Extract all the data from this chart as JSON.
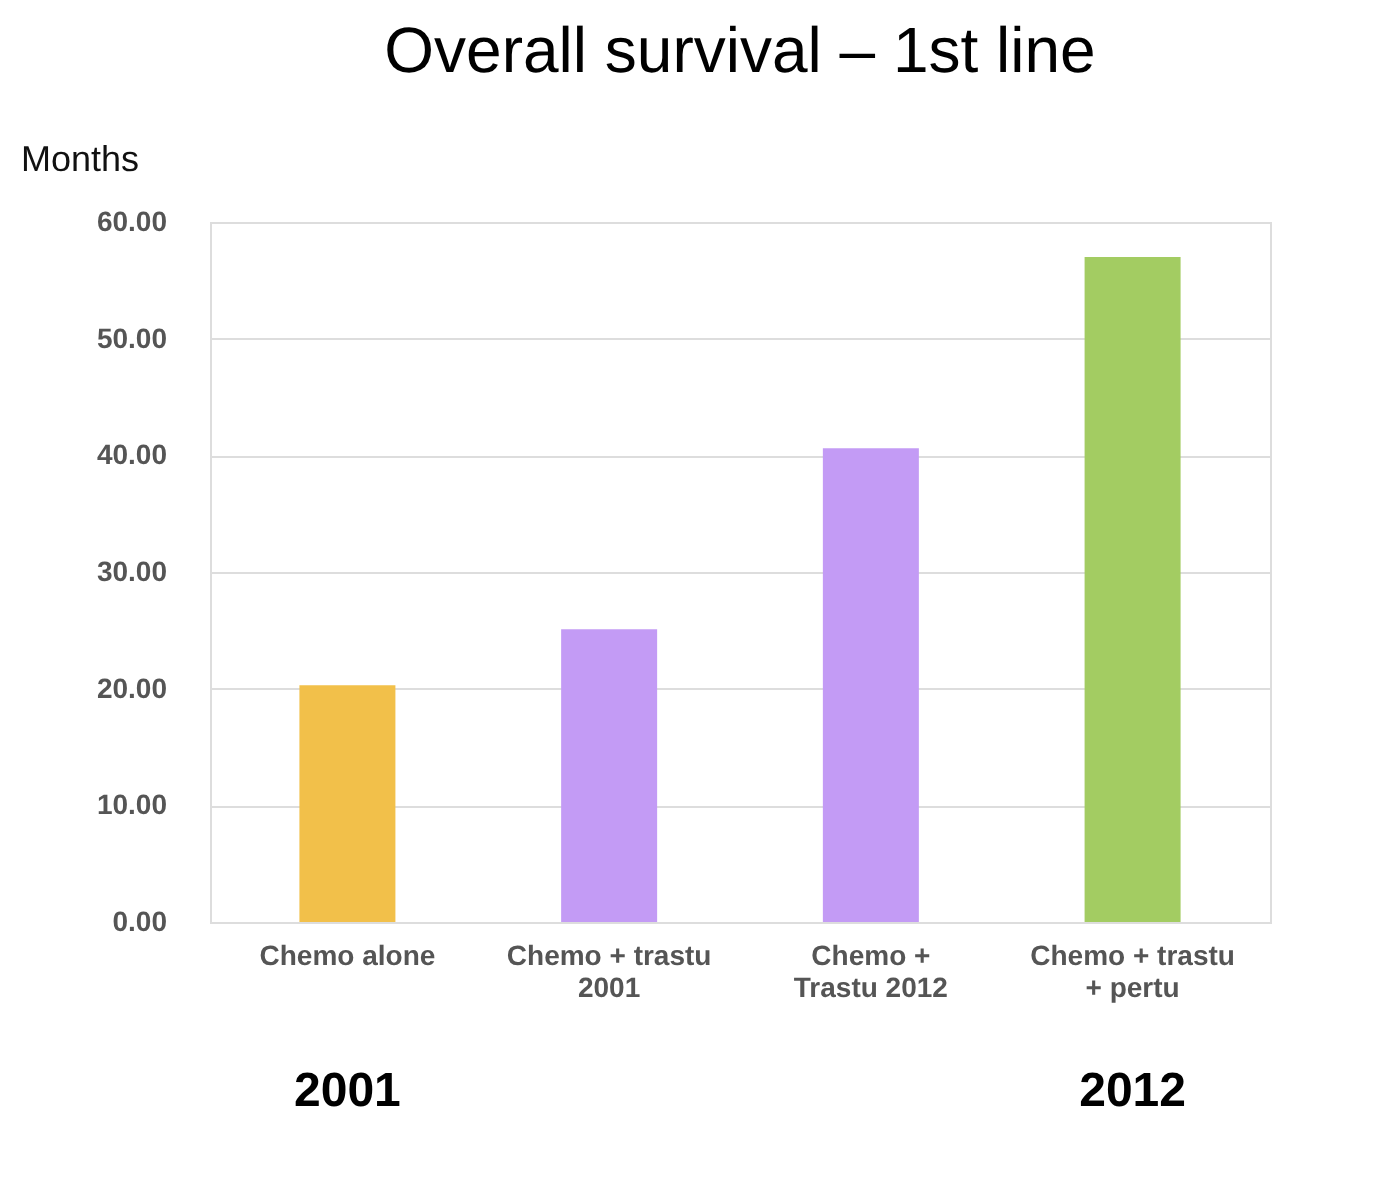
{
  "chart_data": {
    "type": "bar",
    "title": "Overall survival – 1st line",
    "ylabel": "Months",
    "categories": [
      "Chemo alone",
      "Chemo + trastu\n2001",
      "Chemo +\nTrastu 2012",
      "Chemo + trastu\n+ pertu"
    ],
    "values": [
      20.3,
      25.1,
      40.6,
      57.0
    ],
    "colors": [
      "#f2c04a",
      "#c39bf5",
      "#c39bf5",
      "#a3cc62"
    ],
    "ylim": [
      0,
      60
    ],
    "yticks": [
      {
        "value": 0,
        "label": "0.00"
      },
      {
        "value": 10,
        "label": "10.00"
      },
      {
        "value": 20,
        "label": "20.00"
      },
      {
        "value": 30,
        "label": "30.00"
      },
      {
        "value": 40,
        "label": "40.00"
      },
      {
        "value": 50,
        "label": "50.00"
      },
      {
        "value": 60,
        "label": "60.00"
      }
    ],
    "grid": "y",
    "annotations": [
      "2001",
      "2012"
    ]
  }
}
